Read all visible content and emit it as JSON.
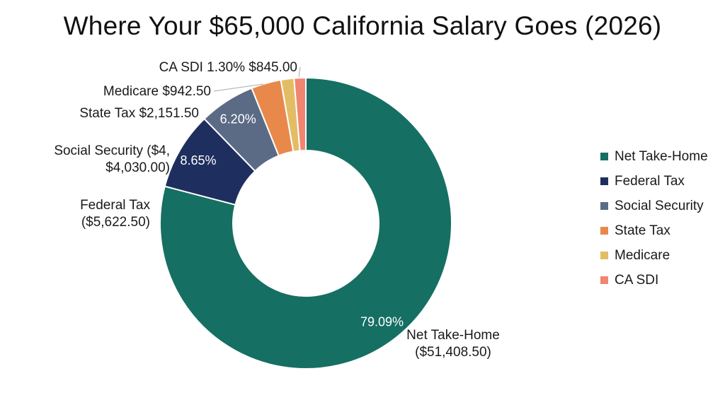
{
  "chart_data": {
    "type": "pie",
    "donut": true,
    "title": "Where Your $65,000 California Salary Goes (2026)",
    "legend_position": "right",
    "slices": [
      {
        "name": "Net Take-Home",
        "value": 51408.5,
        "percent_label": "79.09%",
        "label_lines": [
          "Net Take-Home",
          "($51,408.50)"
        ],
        "color": "#156f63"
      },
      {
        "name": "Federal Tax",
        "value": 5622.5,
        "percent_label": "8.65%",
        "label_lines": [
          "Federal Tax",
          "($5,622.50)"
        ],
        "color": "#1e2f5f"
      },
      {
        "name": "Social Security",
        "value": 4030.0,
        "percent_label": "6.20%",
        "label_lines": [
          "Social Security ($4,",
          "$4,030.00)"
        ],
        "color": "#5b6b86"
      },
      {
        "name": "State Tax",
        "value": 2151.5,
        "percent_label": "",
        "label_lines": [
          "State Tax $2,151.50"
        ],
        "color": "#e8894b"
      },
      {
        "name": "Medicare",
        "value": 942.5,
        "percent_label": "",
        "label_lines": [
          "Medicare $942.50"
        ],
        "color": "#e3bd66"
      },
      {
        "name": "CA SDI",
        "value": 845.0,
        "percent_label": "",
        "label_lines": [
          "CA SDI 1.30% $845.00"
        ],
        "color": "#f28570"
      }
    ]
  }
}
